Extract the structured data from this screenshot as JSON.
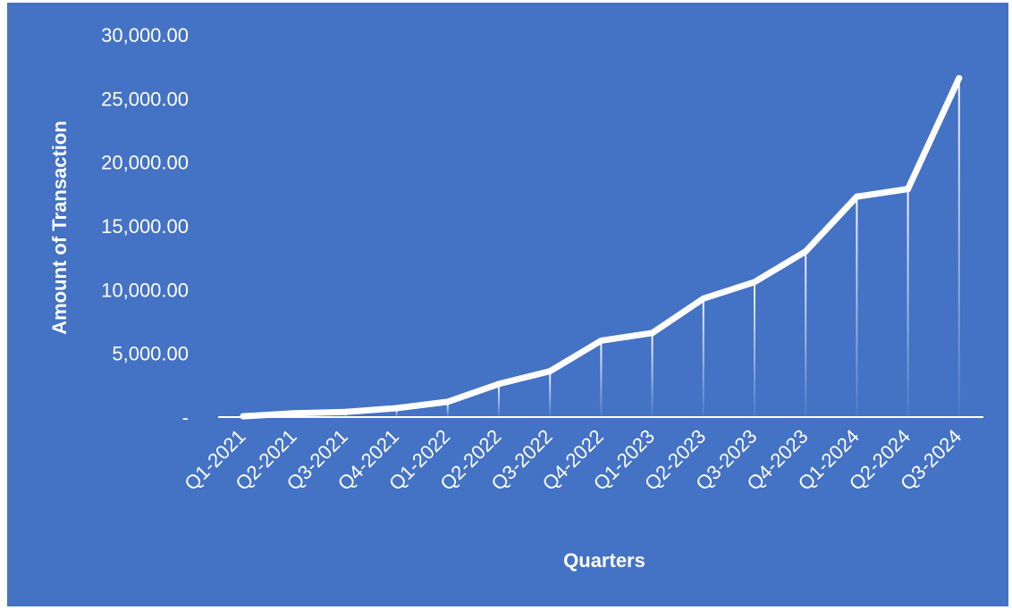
{
  "chart_data": {
    "type": "line",
    "title": "",
    "xlabel": "Quarters",
    "ylabel": "Amount of Transaction",
    "categories": [
      "Q1-2021",
      "Q2-2021",
      "Q3-2021",
      "Q4-2021",
      "Q1-2022",
      "Q2-2022",
      "Q3-2022",
      "Q4-2022",
      "Q1-2023",
      "Q2-2023",
      "Q3-2023",
      "Q4-2023",
      "Q1-2024",
      "Q2-2024",
      "Q3-2024"
    ],
    "series": [
      {
        "values": [
          60,
          300,
          400,
          700,
          1200,
          2600,
          3600,
          6000,
          6600,
          9300,
          10600,
          13000,
          17300,
          17900,
          26600
        ]
      }
    ],
    "ylim": [
      0,
      30000
    ],
    "yticks": [
      0,
      5000,
      10000,
      15000,
      20000,
      25000,
      30000
    ],
    "ytick_labels": [
      "-",
      "5,000.00",
      "10,000.00",
      "15,000.00",
      "20,000.00",
      "25,000.00",
      "30,000.00"
    ],
    "drop_lines": true,
    "grid": false,
    "legend": "none",
    "colors": {
      "background": "#4472C4",
      "line": "#ffffff",
      "text": "#ffffff"
    }
  }
}
